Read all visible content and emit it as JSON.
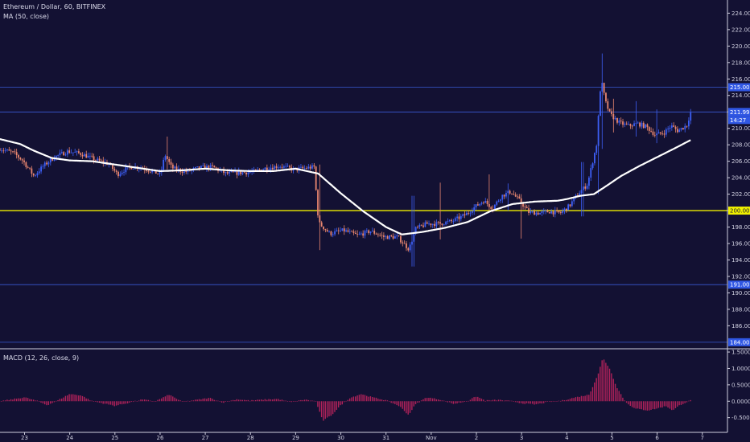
{
  "header": {
    "symbol_line": "Ethereum / Dollar, 60, BITFINEX",
    "ma_line": "MA (50, close)",
    "macd_line": "MACD (12, 26, close, 9)"
  },
  "colors": {
    "background": "#131133",
    "axis_line": "#cfcfdf",
    "candle_up": "#3d5ff5",
    "candle_down": "#e8866f",
    "ma_line": "#ffffff",
    "level_line": "#3a5bd6",
    "support_line": "#f0f000",
    "macd_bar": "#b0225a",
    "price_tag": "#3057e4"
  },
  "chart_data": [
    {
      "type": "candlestick",
      "title": "Ethereum / Dollar, 60, BITFINEX",
      "x_ticks": [
        "23",
        "24",
        "25",
        "26",
        "27",
        "28",
        "29",
        "30",
        "31",
        "Nov",
        "2",
        "3",
        "4",
        "5",
        "6",
        "7"
      ],
      "y_ticks": [
        "186.00",
        "188.00",
        "190.00",
        "192.00",
        "194.00",
        "196.00",
        "198.00",
        "200.00",
        "202.00",
        "204.00",
        "206.00",
        "208.00",
        "210.00",
        "212.00",
        "214.00",
        "216.00",
        "218.00",
        "220.00",
        "222.00",
        "224.00"
      ],
      "ylim": [
        183.4,
        225.6
      ],
      "grid": false,
      "horizontal_levels": [
        {
          "value": 215.0,
          "label": "215.00",
          "color": "#3a5bd6"
        },
        {
          "value": 211.99,
          "label": "211.99",
          "color": "#3a5bd6"
        },
        {
          "value": 200.0,
          "label": "200.00",
          "color": "#f0f000"
        },
        {
          "value": 191.0,
          "label": "191.00",
          "color": "#3a5bd6"
        },
        {
          "value": 184.0,
          "label": "184.00",
          "color": "#3a5bd6"
        }
      ],
      "countdown_label": "14:27",
      "price_anchors": [
        {
          "day": 22.45,
          "price": 207.6
        },
        {
          "day": 22.8,
          "price": 207.0
        },
        {
          "day": 23.0,
          "price": 206.1
        },
        {
          "day": 23.25,
          "price": 204.2
        },
        {
          "day": 23.45,
          "price": 205.4
        },
        {
          "day": 23.7,
          "price": 206.5
        },
        {
          "day": 24.0,
          "price": 207.2
        },
        {
          "day": 24.3,
          "price": 206.9
        },
        {
          "day": 24.6,
          "price": 206.2
        },
        {
          "day": 24.9,
          "price": 205.7
        },
        {
          "day": 25.1,
          "price": 204.4
        },
        {
          "day": 25.35,
          "price": 205.3
        },
        {
          "day": 25.6,
          "price": 205.3
        },
        {
          "day": 25.9,
          "price": 204.7
        },
        {
          "day": 26.05,
          "price": 204.4
        },
        {
          "day": 26.15,
          "price": 206.8
        },
        {
          "day": 26.3,
          "price": 205.2
        },
        {
          "day": 26.6,
          "price": 204.7
        },
        {
          "day": 26.9,
          "price": 205.2
        },
        {
          "day": 27.2,
          "price": 205.3
        },
        {
          "day": 27.5,
          "price": 204.5
        },
        {
          "day": 27.8,
          "price": 204.6
        },
        {
          "day": 28.1,
          "price": 204.7
        },
        {
          "day": 28.4,
          "price": 205.2
        },
        {
          "day": 28.7,
          "price": 205.4
        },
        {
          "day": 29.0,
          "price": 205.0
        },
        {
          "day": 29.45,
          "price": 205.3
        },
        {
          "day": 29.55,
          "price": 198.5
        },
        {
          "day": 29.8,
          "price": 197.2
        },
        {
          "day": 30.1,
          "price": 197.6
        },
        {
          "day": 30.4,
          "price": 197.0
        },
        {
          "day": 30.7,
          "price": 197.5
        },
        {
          "day": 31.0,
          "price": 196.8
        },
        {
          "day": 31.3,
          "price": 196.8
        },
        {
          "day": 31.55,
          "price": 195.3
        },
        {
          "day": 31.7,
          "price": 197.8
        },
        {
          "day": 31.95,
          "price": 198.4
        },
        {
          "day": 32.2,
          "price": 198.4
        },
        {
          "day": 32.5,
          "price": 198.7
        },
        {
          "day": 32.8,
          "price": 199.5
        },
        {
          "day": 33.0,
          "price": 200.4
        },
        {
          "day": 33.2,
          "price": 201.2
        },
        {
          "day": 33.4,
          "price": 200.3
        },
        {
          "day": 33.6,
          "price": 201.8
        },
        {
          "day": 33.8,
          "price": 202.3
        },
        {
          "day": 34.0,
          "price": 201.2
        },
        {
          "day": 34.2,
          "price": 199.8
        },
        {
          "day": 34.45,
          "price": 199.7
        },
        {
          "day": 34.65,
          "price": 199.9
        },
        {
          "day": 34.9,
          "price": 199.7
        },
        {
          "day": 35.1,
          "price": 200.6
        },
        {
          "day": 35.3,
          "price": 202.1
        },
        {
          "day": 35.5,
          "price": 203.2
        },
        {
          "day": 35.7,
          "price": 208.0
        },
        {
          "day": 35.8,
          "price": 216.0
        },
        {
          "day": 35.9,
          "price": 213.2
        },
        {
          "day": 36.0,
          "price": 211.7
        },
        {
          "day": 36.2,
          "price": 210.7
        },
        {
          "day": 36.4,
          "price": 210.3
        },
        {
          "day": 36.6,
          "price": 210.6
        },
        {
          "day": 36.8,
          "price": 210.2
        },
        {
          "day": 37.0,
          "price": 209.2
        },
        {
          "day": 37.2,
          "price": 209.5
        },
        {
          "day": 37.35,
          "price": 210.3
        },
        {
          "day": 37.5,
          "price": 209.7
        },
        {
          "day": 37.7,
          "price": 210.4
        },
        {
          "day": 37.78,
          "price": 211.9
        }
      ],
      "ma50_anchors": [
        {
          "day": 22.45,
          "price": 208.7
        },
        {
          "day": 22.9,
          "price": 208.1
        },
        {
          "day": 23.2,
          "price": 207.3
        },
        {
          "day": 23.6,
          "price": 206.4
        },
        {
          "day": 24.0,
          "price": 206.1
        },
        {
          "day": 24.5,
          "price": 206.0
        },
        {
          "day": 25.0,
          "price": 205.6
        },
        {
          "day": 25.5,
          "price": 205.2
        },
        {
          "day": 26.0,
          "price": 204.8
        },
        {
          "day": 26.5,
          "price": 204.9
        },
        {
          "day": 27.0,
          "price": 205.1
        },
        {
          "day": 27.5,
          "price": 204.9
        },
        {
          "day": 28.0,
          "price": 204.8
        },
        {
          "day": 28.5,
          "price": 204.8
        },
        {
          "day": 29.0,
          "price": 205.1
        },
        {
          "day": 29.5,
          "price": 204.5
        },
        {
          "day": 30.0,
          "price": 202.1
        },
        {
          "day": 30.5,
          "price": 199.9
        },
        {
          "day": 31.0,
          "price": 198.0
        },
        {
          "day": 31.35,
          "price": 197.1
        },
        {
          "day": 31.8,
          "price": 197.4
        },
        {
          "day": 32.3,
          "price": 197.9
        },
        {
          "day": 32.8,
          "price": 198.6
        },
        {
          "day": 33.3,
          "price": 199.9
        },
        {
          "day": 33.8,
          "price": 200.8
        },
        {
          "day": 34.3,
          "price": 201.1
        },
        {
          "day": 34.8,
          "price": 201.2
        },
        {
          "day": 35.0,
          "price": 201.4
        },
        {
          "day": 35.3,
          "price": 201.8
        },
        {
          "day": 35.6,
          "price": 202.0
        },
        {
          "day": 35.85,
          "price": 202.9
        },
        {
          "day": 36.2,
          "price": 204.2
        },
        {
          "day": 36.6,
          "price": 205.4
        },
        {
          "day": 37.0,
          "price": 206.5
        },
        {
          "day": 37.4,
          "price": 207.6
        },
        {
          "day": 37.75,
          "price": 208.6
        }
      ]
    },
    {
      "type": "bar",
      "title": "MACD (12, 26, close, 9)",
      "y_ticks": [
        "-0.5000",
        "0.0000",
        "0.5000",
        "1.0000",
        "1.5000"
      ],
      "ylim": [
        -0.9,
        1.55
      ],
      "grid": false,
      "series": [
        {
          "name": "MACD (12, 26, close, 9)",
          "anchors": [
            {
              "day": 22.45,
              "value": 0.0
            },
            {
              "day": 22.7,
              "value": 0.05
            },
            {
              "day": 23.0,
              "value": 0.12
            },
            {
              "day": 23.3,
              "value": 0.0
            },
            {
              "day": 23.5,
              "value": -0.12
            },
            {
              "day": 23.7,
              "value": 0.0
            },
            {
              "day": 24.0,
              "value": 0.22
            },
            {
              "day": 24.25,
              "value": 0.18
            },
            {
              "day": 24.5,
              "value": 0.0
            },
            {
              "day": 24.8,
              "value": -0.08
            },
            {
              "day": 25.0,
              "value": -0.14
            },
            {
              "day": 25.3,
              "value": -0.05
            },
            {
              "day": 25.6,
              "value": 0.05
            },
            {
              "day": 25.9,
              "value": 0.0
            },
            {
              "day": 26.2,
              "value": 0.2
            },
            {
              "day": 26.5,
              "value": -0.02
            },
            {
              "day": 26.8,
              "value": 0.04
            },
            {
              "day": 27.1,
              "value": 0.1
            },
            {
              "day": 27.4,
              "value": -0.04
            },
            {
              "day": 27.7,
              "value": 0.06
            },
            {
              "day": 28.0,
              "value": 0.02
            },
            {
              "day": 28.3,
              "value": 0.05
            },
            {
              "day": 28.6,
              "value": 0.07
            },
            {
              "day": 28.9,
              "value": -0.03
            },
            {
              "day": 29.2,
              "value": 0.05
            },
            {
              "day": 29.45,
              "value": 0.0
            },
            {
              "day": 29.6,
              "value": -0.6
            },
            {
              "day": 29.8,
              "value": -0.42
            },
            {
              "day": 30.0,
              "value": -0.12
            },
            {
              "day": 30.2,
              "value": 0.1
            },
            {
              "day": 30.45,
              "value": 0.22
            },
            {
              "day": 30.7,
              "value": 0.12
            },
            {
              "day": 31.0,
              "value": 0.03
            },
            {
              "day": 31.3,
              "value": -0.15
            },
            {
              "day": 31.5,
              "value": -0.42
            },
            {
              "day": 31.65,
              "value": -0.1
            },
            {
              "day": 31.9,
              "value": 0.12
            },
            {
              "day": 32.2,
              "value": 0.05
            },
            {
              "day": 32.5,
              "value": -0.08
            },
            {
              "day": 32.8,
              "value": 0.0
            },
            {
              "day": 33.0,
              "value": 0.15
            },
            {
              "day": 33.2,
              "value": 0.02
            },
            {
              "day": 33.5,
              "value": 0.04
            },
            {
              "day": 33.8,
              "value": 0.0
            },
            {
              "day": 34.0,
              "value": -0.06
            },
            {
              "day": 34.3,
              "value": -0.1
            },
            {
              "day": 34.6,
              "value": -0.02
            },
            {
              "day": 34.9,
              "value": 0.02
            },
            {
              "day": 35.2,
              "value": 0.12
            },
            {
              "day": 35.5,
              "value": 0.2
            },
            {
              "day": 35.7,
              "value": 0.85
            },
            {
              "day": 35.8,
              "value": 1.32
            },
            {
              "day": 35.95,
              "value": 1.0
            },
            {
              "day": 36.1,
              "value": 0.45
            },
            {
              "day": 36.3,
              "value": -0.02
            },
            {
              "day": 36.5,
              "value": -0.22
            },
            {
              "day": 36.8,
              "value": -0.28
            },
            {
              "day": 37.0,
              "value": -0.22
            },
            {
              "day": 37.2,
              "value": -0.15
            },
            {
              "day": 37.35,
              "value": -0.28
            },
            {
              "day": 37.5,
              "value": -0.12
            },
            {
              "day": 37.78,
              "value": 0.05
            }
          ]
        }
      ]
    }
  ]
}
